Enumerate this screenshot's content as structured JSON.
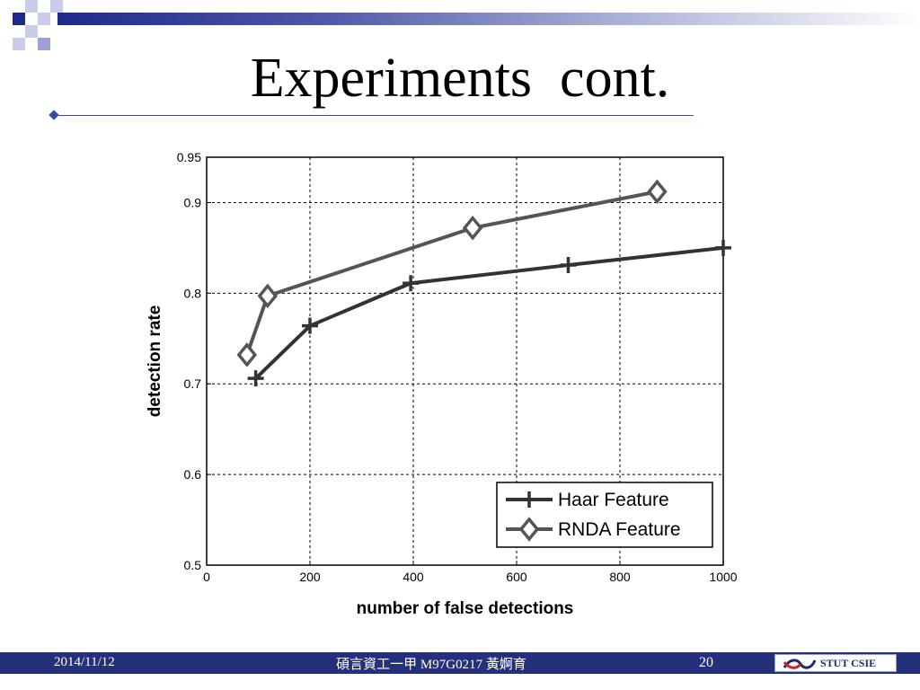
{
  "slide": {
    "title": "Experiments  cont.",
    "footer": {
      "date": "2014/11/12",
      "center_text": "碩言資工一甲 M97G0217 黃婀育",
      "page": "20",
      "logo_text": "STUT CSIE"
    },
    "colors": {
      "footer_bar": "#24317a",
      "accent": "#3a4aa8"
    }
  },
  "chart_data": {
    "type": "line",
    "title": "",
    "xlabel": "number of false detections",
    "ylabel": "detection rate",
    "xlim": [
      0,
      1000
    ],
    "ylim": [
      0.5,
      0.95
    ],
    "xticks": [
      0,
      200,
      400,
      600,
      800,
      1000
    ],
    "xtick_labels": [
      "0",
      "200",
      "400",
      "600",
      "800",
      "1000"
    ],
    "yticks": [
      0.5,
      0.6,
      0.7,
      0.8,
      0.9,
      0.95
    ],
    "ytick_labels": [
      "0.5",
      "0.6",
      "0.7",
      "0.8",
      "0.9",
      "0.95"
    ],
    "grid": true,
    "legend_position": "bottom-right",
    "series": [
      {
        "name": "Haar Feature",
        "marker": "plus",
        "color": "#333333",
        "x": [
          95,
          200,
          395,
          700,
          1000
        ],
        "y": [
          0.706,
          0.764,
          0.811,
          0.831,
          0.85
        ]
      },
      {
        "name": "RNDA Feature",
        "marker": "diamond",
        "color": "#555555",
        "x": [
          78,
          118,
          515,
          872
        ],
        "y": [
          0.732,
          0.797,
          0.872,
          0.912
        ]
      }
    ]
  }
}
